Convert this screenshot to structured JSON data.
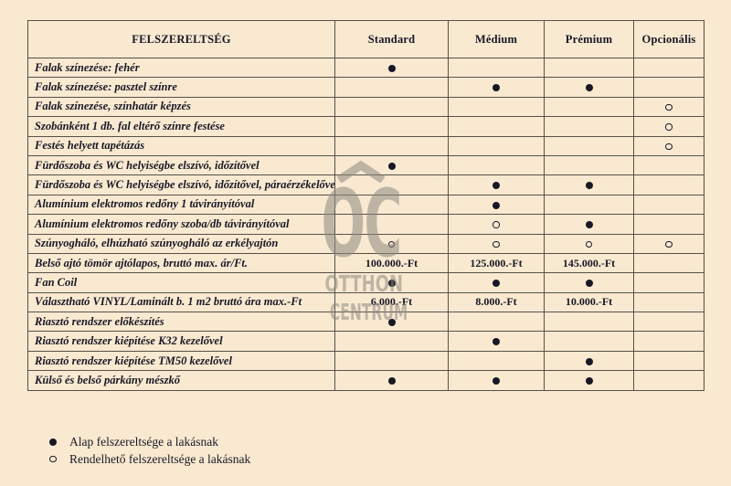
{
  "table": {
    "header": [
      "FELSZERELTSÉG",
      "Standard",
      "Médium",
      "Prémium",
      "Opcionális"
    ],
    "rows": [
      {
        "label": "Falak színezése: fehér",
        "cells": [
          "filled",
          "",
          "",
          ""
        ]
      },
      {
        "label": "Falak színezése: pasztel színre",
        "cells": [
          "",
          "filled",
          "filled",
          ""
        ]
      },
      {
        "label": "Falak színezése, színhatár képzés",
        "cells": [
          "",
          "",
          "",
          "open"
        ]
      },
      {
        "label": "Szobánként 1 db. fal eltérő színre festése",
        "cells": [
          "",
          "",
          "",
          "open"
        ]
      },
      {
        "label": "Festés helyett tapétázás",
        "cells": [
          "",
          "",
          "",
          "open"
        ]
      },
      {
        "label": "Fürdőszoba és WC helyiségbe elszívó, időzítővel",
        "cells": [
          "filled",
          "",
          "",
          ""
        ]
      },
      {
        "label": "Fürdőszoba és WC helyiségbe elszívó, időzítővel, páraérzékelővel",
        "cells": [
          "",
          "filled",
          "filled",
          ""
        ]
      },
      {
        "label": "Alumínium elektromos redőny 1 távirányítóval",
        "cells": [
          "",
          "filled",
          "",
          ""
        ]
      },
      {
        "label": "Alumínium elektromos redőny szoba/db távirányítóval",
        "cells": [
          "",
          "open",
          "filled",
          ""
        ]
      },
      {
        "label": "Szúnyogháló, elhúzható szúnyogháló az erkélyajtón",
        "cells": [
          "open",
          "open",
          "open",
          "open"
        ]
      },
      {
        "label": "Belső ajtó tömör ajtólapos, bruttó max. ár/Ft.",
        "cells": [
          "100.000.-Ft",
          "125.000.-Ft",
          "145.000.-Ft",
          ""
        ]
      },
      {
        "label": "Fan Coil",
        "cells": [
          "filled",
          "filled",
          "filled",
          ""
        ]
      },
      {
        "label": "Választható VINYL/Laminált b. 1 m2 bruttó ára max.-Ft",
        "cells": [
          "6.000.-Ft",
          "8.000.-Ft",
          "10.000.-Ft",
          ""
        ]
      },
      {
        "label": "Riasztó rendszer előkészítés",
        "cells": [
          "filled",
          "",
          "",
          ""
        ]
      },
      {
        "label": "Riasztó rendszer kiépítése K32 kezelővel",
        "cells": [
          "",
          "filled",
          "",
          ""
        ]
      },
      {
        "label": "Riasztó rendszer kiépítése TM50 kezelővel",
        "cells": [
          "",
          "",
          "filled",
          ""
        ]
      },
      {
        "label": "Külső és belső párkány mészkő",
        "cells": [
          "filled",
          "filled",
          "filled",
          ""
        ]
      }
    ],
    "column_keys": [
      "standard",
      "medium",
      "premium",
      "optional"
    ]
  },
  "legend": {
    "items": [
      {
        "symbol": "filled",
        "text": "Alap felszereltsége a lakásnak"
      },
      {
        "symbol": "open",
        "text": "Rendelhető felszereltsége a lakásnak"
      }
    ]
  },
  "watermark": {
    "monogram": "OC",
    "line1": "OTTHON",
    "line2": "CENTRUM"
  },
  "colors": {
    "background": "#f9e9d1",
    "border": "#56514a",
    "text": "#181824",
    "watermark": "#8f8a81"
  }
}
